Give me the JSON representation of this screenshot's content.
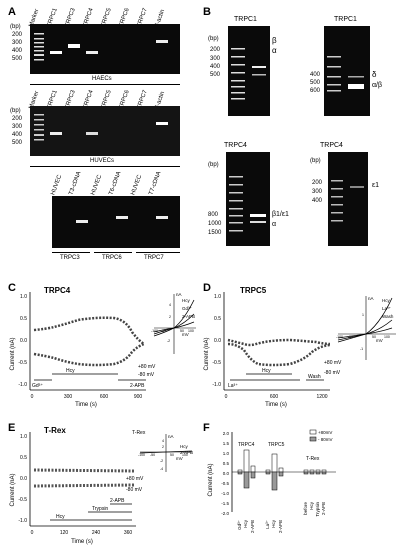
{
  "panels": {
    "A": {
      "letter": "A",
      "top_lanes": [
        "Marker",
        "TRPC1",
        "TRPC3",
        "TRPC4",
        "TRPC5",
        "TRPC6",
        "TRPC7",
        "β-actin"
      ],
      "bp_label": "(bp)",
      "bp_ticks": [
        "200",
        "300",
        "400",
        "500"
      ],
      "haec_label": "HAECs",
      "mid_lanes": [
        "Marker",
        "TRPC1",
        "TRPC3",
        "TRPC4",
        "TRPC5",
        "TRPC6",
        "TRPC7",
        "β-actin"
      ],
      "huvec_label": "HUVECs",
      "bottom_lanes": [
        "HUVEC",
        "T3-cDNA",
        "HUVEC",
        "T6-cDNA",
        "HUVEC",
        "T7-cDNA"
      ],
      "groups": [
        "TRPC3",
        "TRPC6",
        "TRPC7"
      ]
    },
    "B": {
      "letter": "B",
      "tl_title": "TRPC1",
      "tl_bp_label": "(bp)",
      "tl_ticks": [
        "200",
        "300",
        "400",
        "500"
      ],
      "tl_arrows": [
        "β",
        "α"
      ],
      "tr_title": "TRPC1",
      "tr_ticks": [
        "400",
        "500",
        "600"
      ],
      "tr_arrows": [
        "δ",
        "α/β"
      ],
      "bl_title": "TRPC4",
      "bl_bp_label": "(bp)",
      "bl_ticks": [
        "800",
        "1000",
        "1500"
      ],
      "bl_arrows": [
        "β1/ε1",
        "α"
      ],
      "br_title": "TRPC4",
      "br_bp_label": "(bp)",
      "br_ticks": [
        "200",
        "300",
        "400"
      ],
      "br_arrows": [
        "ε1"
      ]
    },
    "C": {
      "letter": "C",
      "title": "TRPC4",
      "ylabel": "Current (nA)",
      "xlabel": "Time (s)",
      "yticks": [
        "1.0",
        "0.5",
        "0.0",
        "-0.5",
        "-1.0"
      ],
      "xticks": [
        "0",
        "300",
        "600",
        "900"
      ],
      "bars": [
        "Gd³⁺",
        "Hcy",
        "2-APB"
      ],
      "traces": [
        "+80 mV",
        "-80 mV"
      ],
      "inset": {
        "nA": "nA",
        "mV": "mV",
        "curves": [
          "Hcy",
          "Gd³⁺",
          "2-APB"
        ],
        "xticks": [
          "-100",
          "-50",
          "50",
          "100"
        ],
        "yticks": [
          "4",
          "2",
          "-2"
        ]
      }
    },
    "D": {
      "letter": "D",
      "title": "TRPC5",
      "ylabel": "Current (nA)",
      "xlabel": "Time (s)",
      "yticks": [
        "1.0",
        "0.5",
        "0.0",
        "-0.5",
        "-1.0"
      ],
      "xticks": [
        "0",
        "600",
        "1200"
      ],
      "bars": [
        "La³⁺",
        "Hcy",
        "Wash"
      ],
      "traces": [
        "+80 mV",
        "-80 mV"
      ],
      "inset": {
        "nA": "nA",
        "mV": "mV",
        "curves": [
          "Hcy",
          "La³⁺",
          "Wash"
        ],
        "xticks": [
          "-100",
          "-50",
          "50",
          "100"
        ],
        "yticks": [
          "1",
          "-1"
        ]
      }
    },
    "E": {
      "letter": "E",
      "title": "T-Rex",
      "ylabel": "Current (nA)",
      "xlabel": "Time (s)",
      "yticks": [
        "1.0",
        "0.5",
        "0.0",
        "-0.5",
        "-1.0"
      ],
      "xticks": [
        "0",
        "120",
        "240",
        "360"
      ],
      "bars": [
        "Hcy",
        "Trypsin",
        "2-APB"
      ],
      "traces": [
        "+80 mV",
        "-80 mV"
      ],
      "inset": {
        "title": "T-Rex",
        "nA": "nA",
        "mV": "mV",
        "curves": [
          "Hcy",
          "2-APB"
        ],
        "xticks": [
          "-100",
          "-50",
          "50",
          "100"
        ],
        "yticks": [
          "4",
          "2",
          "-2",
          "-4"
        ]
      }
    },
    "F": {
      "letter": "F",
      "ylabel": "Current (nA)",
      "yticks": [
        "2.0",
        "1.5",
        "1.0",
        "0.5",
        "0.0",
        "-0.5",
        "-1.0",
        "-1.5",
        "-2.0"
      ],
      "legend": [
        "+80mV",
        "- 80mV"
      ],
      "groups": [
        "TRPC4",
        "TRPC5",
        "T-Rex"
      ],
      "xcats_c4": [
        "Gd³⁺",
        "Hcy",
        "2-APB"
      ],
      "xcats_c5": [
        "La³⁺",
        "Hcy",
        "2-APB"
      ],
      "xcats_trex": [
        "before",
        "Hcy",
        "Trypsin",
        "2-APB"
      ]
    }
  }
}
